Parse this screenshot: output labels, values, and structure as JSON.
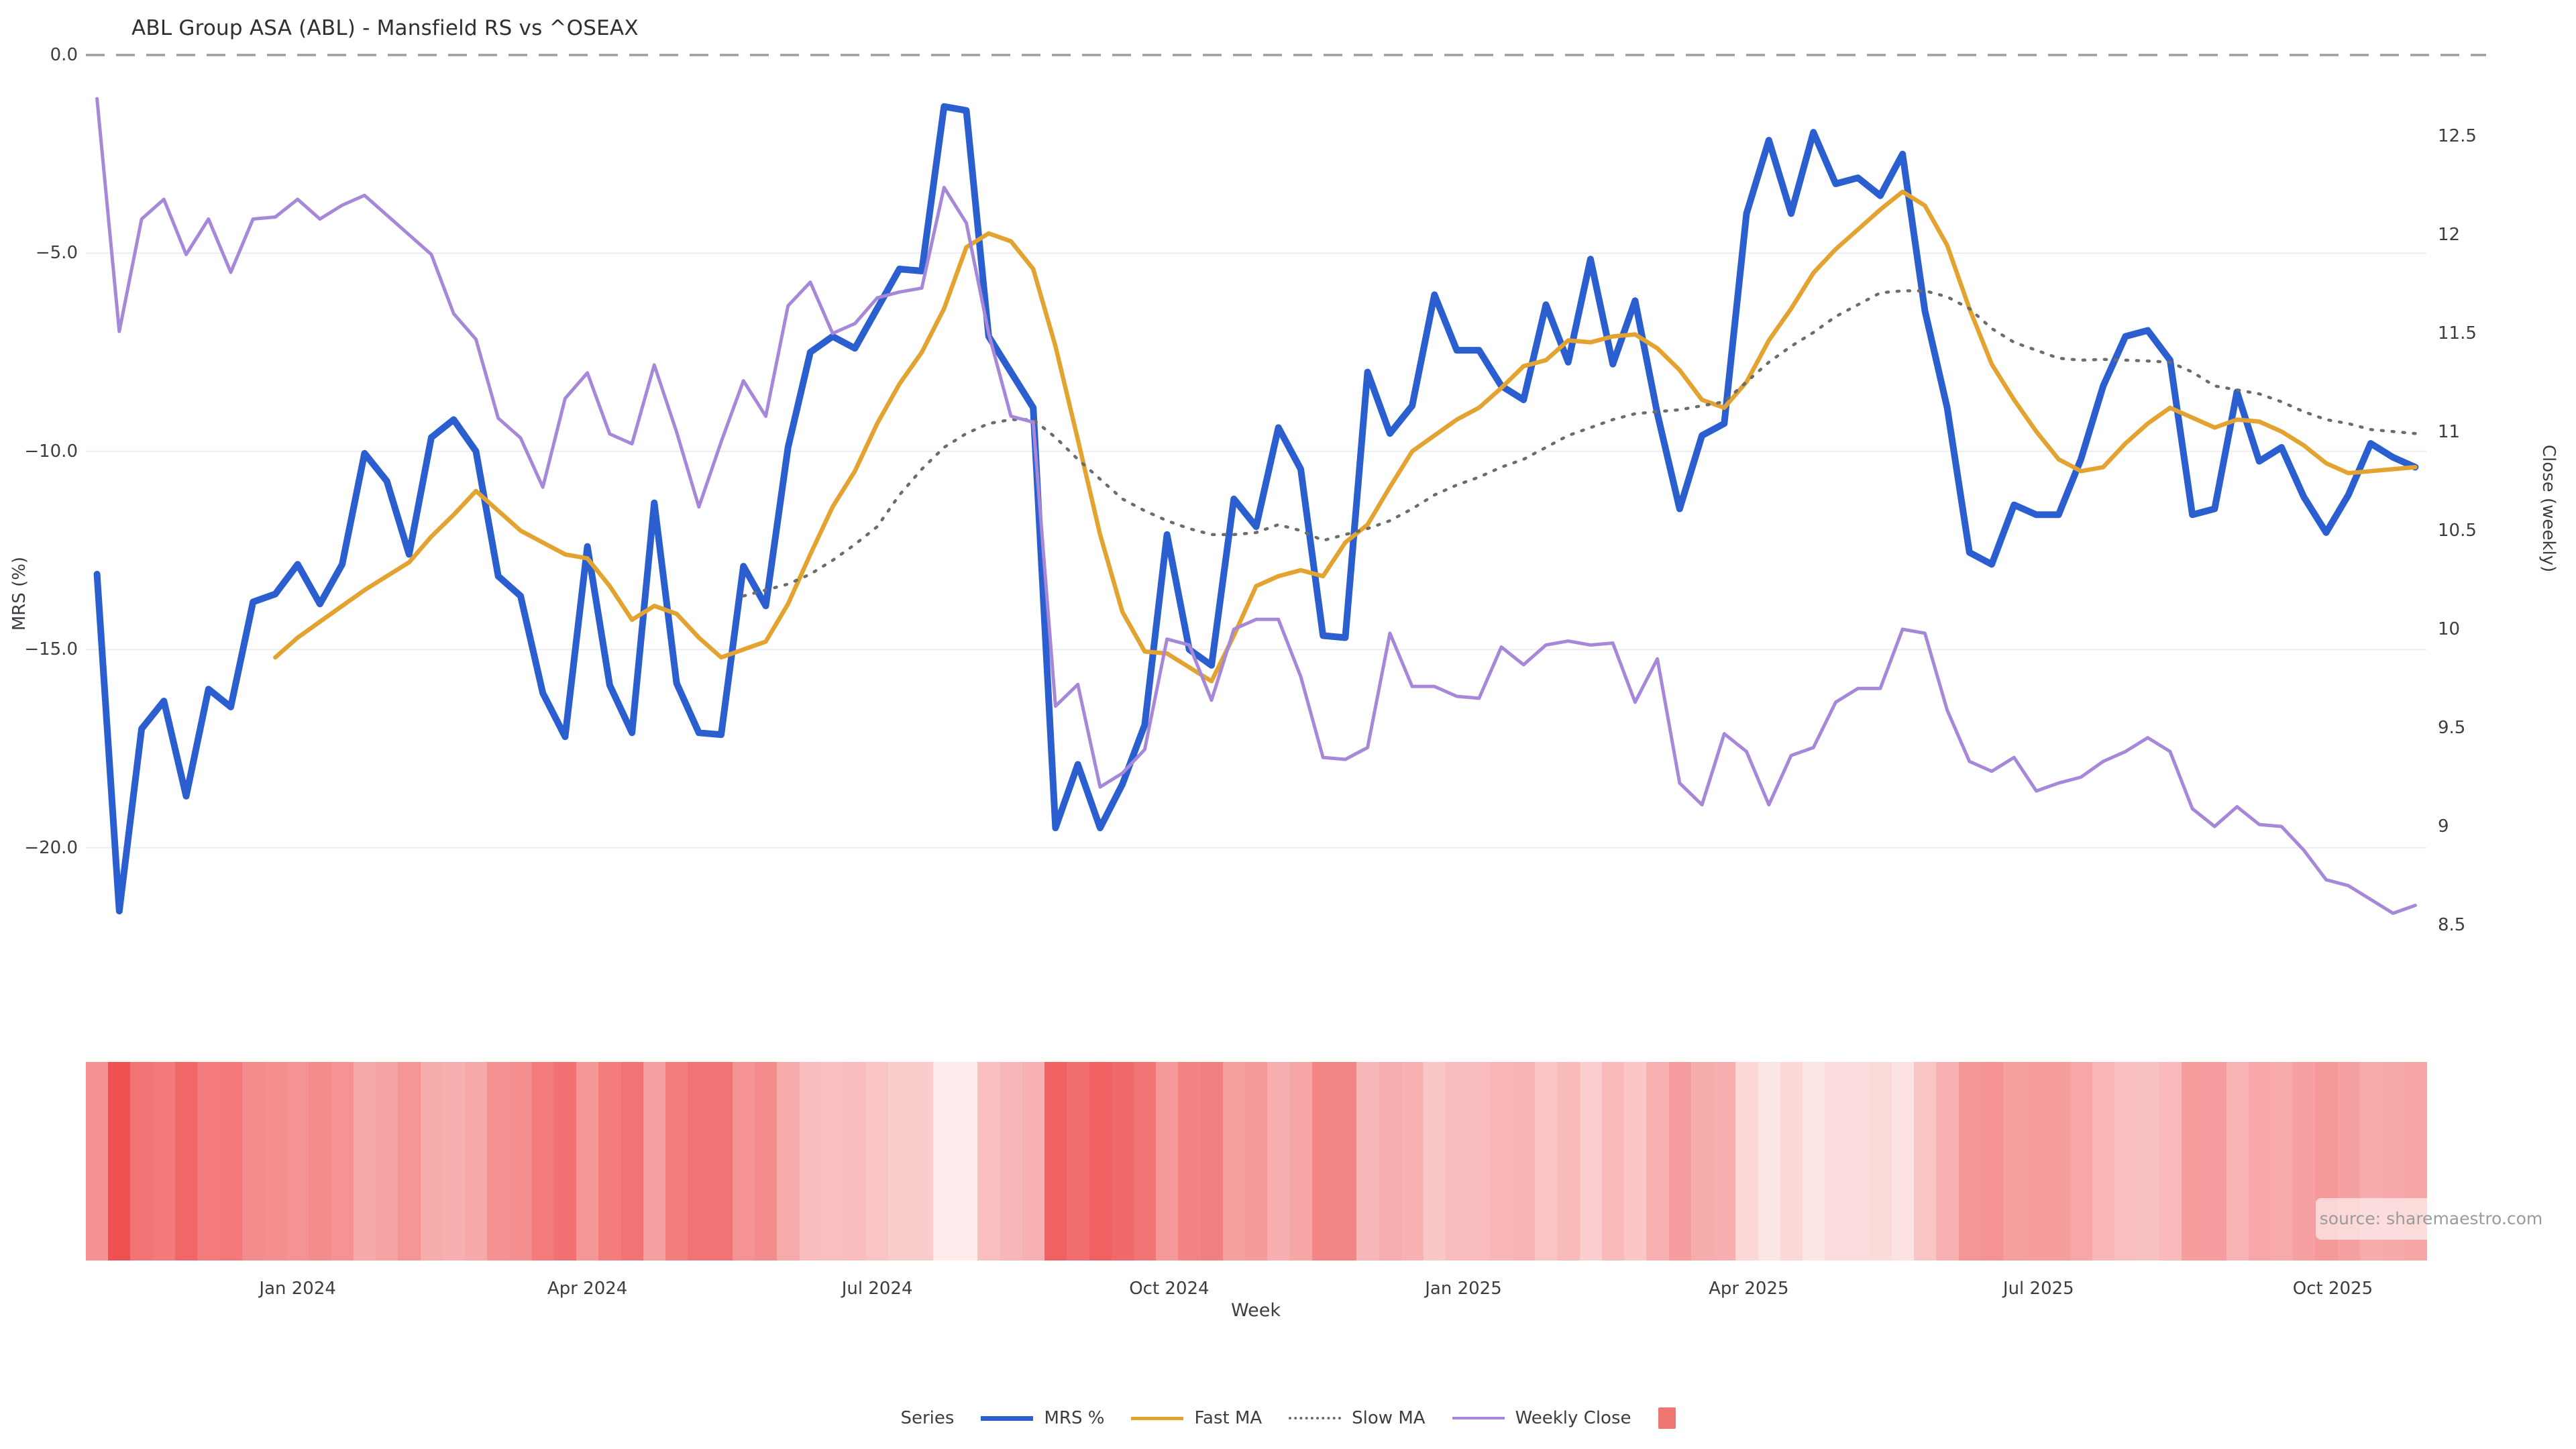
{
  "title": "ABL Group ASA (ABL) - Mansfield RS vs ^OSEAX",
  "source_note": "source: sharemaestro.com",
  "legend": {
    "label": "Series",
    "items": [
      {
        "label": "MRS %",
        "color": "#2b5fd0",
        "style": "line-solid",
        "thickness": 7
      },
      {
        "label": "Fast MA",
        "color": "#e2a331",
        "style": "line-solid",
        "thickness": 5
      },
      {
        "label": "Slow MA",
        "color": "#6c6c6c",
        "style": "line-dotted",
        "thickness": 4
      },
      {
        "label": "Weekly Close",
        "color": "#a687d8",
        "style": "line-solid",
        "thickness": 4
      },
      {
        "label": "",
        "color": "#ef7673",
        "style": "square"
      }
    ]
  },
  "axes": {
    "left": {
      "title": "MRS (%)",
      "tick_labels": [
        "0.0",
        "−5.0",
        "−10.0",
        "−15.0",
        "−20.0"
      ],
      "tick_values": [
        0,
        -5,
        -10,
        -15,
        -20
      ]
    },
    "right": {
      "title": "Close (weekly)",
      "tick_labels": [
        "12.5",
        "12",
        "11.5",
        "11",
        "10.5",
        "10",
        "9.5",
        "9",
        "8.5"
      ],
      "tick_values": [
        12.5,
        12,
        11.5,
        11,
        10.5,
        10,
        9.5,
        9,
        8.5
      ]
    },
    "x": {
      "title": "Week",
      "tick_labels": [
        "Jan 2024",
        "Apr 2024",
        "Jul 2024",
        "Oct 2024",
        "Jan 2025",
        "Apr 2025",
        "Jul 2025",
        "Oct 2025"
      ],
      "tick_week_index": [
        9.0,
        22.0,
        35.0,
        48.1,
        61.3,
        74.1,
        87.1,
        100.3
      ]
    }
  },
  "chart_data": {
    "type": "line",
    "title": "ABL Group ASA (ABL) - Mansfield RS vs ^OSEAX",
    "x": {
      "unit": "week",
      "start_date": "2023-10-30",
      "interval_days": 7,
      "count": 105
    },
    "xlabel": "Week",
    "left_axis": {
      "label": "MRS (%)",
      "ticks": [
        0,
        -5,
        -10,
        -15,
        -20
      ],
      "zero_line_dashed": true
    },
    "right_axis": {
      "label": "Close (weekly)",
      "ticks": [
        12.5,
        12,
        11.5,
        11,
        10.5,
        10,
        9.5,
        9,
        8.5
      ]
    },
    "grid": "horizontal-light",
    "legend_position": "bottom-center",
    "series": [
      {
        "name": "MRS %",
        "axis": "left",
        "color": "#2b5fd0",
        "style": "solid",
        "values": [
          -13.1,
          -21.6,
          -17.0,
          -16.3,
          -18.7,
          -16.0,
          -16.45,
          -13.8,
          -13.6,
          -12.85,
          -13.85,
          -12.85,
          -10.05,
          -10.75,
          -12.6,
          -9.65,
          -9.2,
          -10.0,
          -13.15,
          -13.65,
          -16.1,
          -17.2,
          -12.4,
          -15.9,
          -17.1,
          -11.3,
          -15.85,
          -17.1,
          -17.15,
          -12.9,
          -13.9,
          -9.9,
          -7.5,
          -7.1,
          -7.4,
          -6.4,
          -5.4,
          -5.45,
          -1.3,
          -1.4,
          -7.1,
          -8.0,
          -8.9,
          -19.5,
          -17.9,
          -19.5,
          -18.4,
          -16.9,
          -12.1,
          -15.0,
          -15.4,
          -11.2,
          -11.9,
          -9.4,
          -10.45,
          -14.65,
          -14.7,
          -8.0,
          -9.55,
          -8.85,
          -6.05,
          -7.45,
          -7.45,
          -8.35,
          -8.7,
          -6.3,
          -7.75,
          -5.15,
          -7.8,
          -6.2,
          -9.05,
          -11.45,
          -9.6,
          -9.3,
          -4.0,
          -2.15,
          -4.0,
          -1.95,
          -3.25,
          -3.1,
          -3.55,
          -2.5,
          -6.45,
          -8.9,
          -12.55,
          -12.85,
          -11.35,
          -11.6,
          -11.6,
          -10.2,
          -8.35,
          -7.1,
          -6.95,
          -7.7,
          -11.6,
          -11.45,
          -8.5,
          -10.25,
          -9.9,
          -11.15,
          -12.05,
          -11.1,
          -9.8,
          -10.15,
          -10.4
        ]
      },
      {
        "name": "Fast MA",
        "axis": "left",
        "color": "#e2a331",
        "style": "solid",
        "values": [
          null,
          null,
          null,
          null,
          null,
          null,
          null,
          null,
          -15.2,
          -14.7,
          -14.3,
          -13.9,
          -13.5,
          -13.15,
          -12.8,
          -12.15,
          -11.6,
          -11.0,
          -11.5,
          -12.0,
          -12.3,
          -12.6,
          -12.7,
          -13.4,
          -14.25,
          -13.9,
          -14.1,
          -14.7,
          -15.2,
          -15.0,
          -14.8,
          -13.85,
          -12.6,
          -11.4,
          -10.5,
          -9.3,
          -8.3,
          -7.5,
          -6.4,
          -4.85,
          -4.5,
          -4.7,
          -5.4,
          -7.35,
          -9.7,
          -12.1,
          -14.05,
          -15.05,
          -15.1,
          -15.45,
          -15.8,
          -14.65,
          -13.4,
          -13.15,
          -13.0,
          -13.15,
          -12.3,
          -11.85,
          -10.9,
          -10.0,
          -9.6,
          -9.2,
          -8.9,
          -8.4,
          -7.85,
          -7.7,
          -7.2,
          -7.25,
          -7.1,
          -7.05,
          -7.4,
          -7.95,
          -8.7,
          -8.9,
          -8.25,
          -7.2,
          -6.4,
          -5.5,
          -4.9,
          -4.4,
          -3.9,
          -3.45,
          -3.8,
          -4.8,
          -6.4,
          -7.8,
          -8.7,
          -9.5,
          -10.2,
          -10.5,
          -10.4,
          -9.8,
          -9.3,
          -8.9,
          -9.15,
          -9.4,
          -9.2,
          -9.25,
          -9.5,
          -9.85,
          -10.3,
          -10.55,
          -10.5,
          -10.45,
          -10.4
        ]
      },
      {
        "name": "Slow MA",
        "axis": "left",
        "color": "#6c6c6c",
        "style": "dotted",
        "values": [
          null,
          null,
          null,
          null,
          null,
          null,
          null,
          null,
          null,
          null,
          null,
          null,
          null,
          null,
          null,
          null,
          null,
          null,
          null,
          null,
          null,
          null,
          null,
          null,
          null,
          null,
          null,
          null,
          null,
          -13.65,
          -13.5,
          -13.35,
          -13.1,
          -12.75,
          -12.35,
          -11.9,
          -11.1,
          -10.45,
          -9.9,
          -9.55,
          -9.3,
          -9.2,
          -9.2,
          -9.65,
          -10.2,
          -10.7,
          -11.2,
          -11.5,
          -11.75,
          -11.95,
          -12.1,
          -12.1,
          -12.05,
          -11.85,
          -12.0,
          -12.25,
          -12.1,
          -11.95,
          -11.75,
          -11.45,
          -11.1,
          -10.85,
          -10.65,
          -10.4,
          -10.2,
          -9.9,
          -9.6,
          -9.4,
          -9.2,
          -9.05,
          -9.0,
          -8.95,
          -8.85,
          -8.75,
          -8.25,
          -7.75,
          -7.35,
          -7.0,
          -6.6,
          -6.3,
          -6.0,
          -5.95,
          -5.95,
          -6.1,
          -6.4,
          -6.9,
          -7.25,
          -7.45,
          -7.65,
          -7.7,
          -7.68,
          -7.7,
          -7.72,
          -7.75,
          -8.0,
          -8.35,
          -8.45,
          -8.55,
          -8.75,
          -9.0,
          -9.2,
          -9.3,
          -9.45,
          -9.5,
          -9.55
        ]
      },
      {
        "name": "Weekly Close",
        "axis": "right",
        "color": "#a687d8",
        "style": "solid",
        "values": [
          12.69,
          11.51,
          12.08,
          12.18,
          11.9,
          12.08,
          11.81,
          12.08,
          12.09,
          12.18,
          12.08,
          12.15,
          12.2,
          12.1,
          12.0,
          11.9,
          11.6,
          11.47,
          11.07,
          10.97,
          10.72,
          11.17,
          11.3,
          10.99,
          10.94,
          11.34,
          11.0,
          10.62,
          10.95,
          11.26,
          11.08,
          11.64,
          11.76,
          11.5,
          11.55,
          11.68,
          11.71,
          11.73,
          12.24,
          12.06,
          11.5,
          11.08,
          11.05,
          9.61,
          9.72,
          9.2,
          9.27,
          9.39,
          9.95,
          9.92,
          9.64,
          10.0,
          10.05,
          10.05,
          9.76,
          9.35,
          9.34,
          9.4,
          9.98,
          9.71,
          9.71,
          9.66,
          9.65,
          9.91,
          9.82,
          9.92,
          9.94,
          9.92,
          9.93,
          9.63,
          9.85,
          9.22,
          9.11,
          9.47,
          9.38,
          9.11,
          9.36,
          9.4,
          9.63,
          9.7,
          9.7,
          10.0,
          9.98,
          9.59,
          9.33,
          9.28,
          9.35,
          9.18,
          9.22,
          9.25,
          9.33,
          9.38,
          9.45,
          9.38,
          9.09,
          9.0,
          9.1,
          9.01,
          9.0,
          8.88,
          8.73,
          8.7,
          8.63,
          8.56,
          8.6
        ]
      }
    ],
    "heatmap_strip": {
      "based_on": "MRS %",
      "description": "weekly color band below plot; darker red = more negative MRS %",
      "color_light": "#fdebeb",
      "color_dark": "#ef5152",
      "value_at_light": -1.3,
      "value_at_dark": -21.6
    }
  }
}
